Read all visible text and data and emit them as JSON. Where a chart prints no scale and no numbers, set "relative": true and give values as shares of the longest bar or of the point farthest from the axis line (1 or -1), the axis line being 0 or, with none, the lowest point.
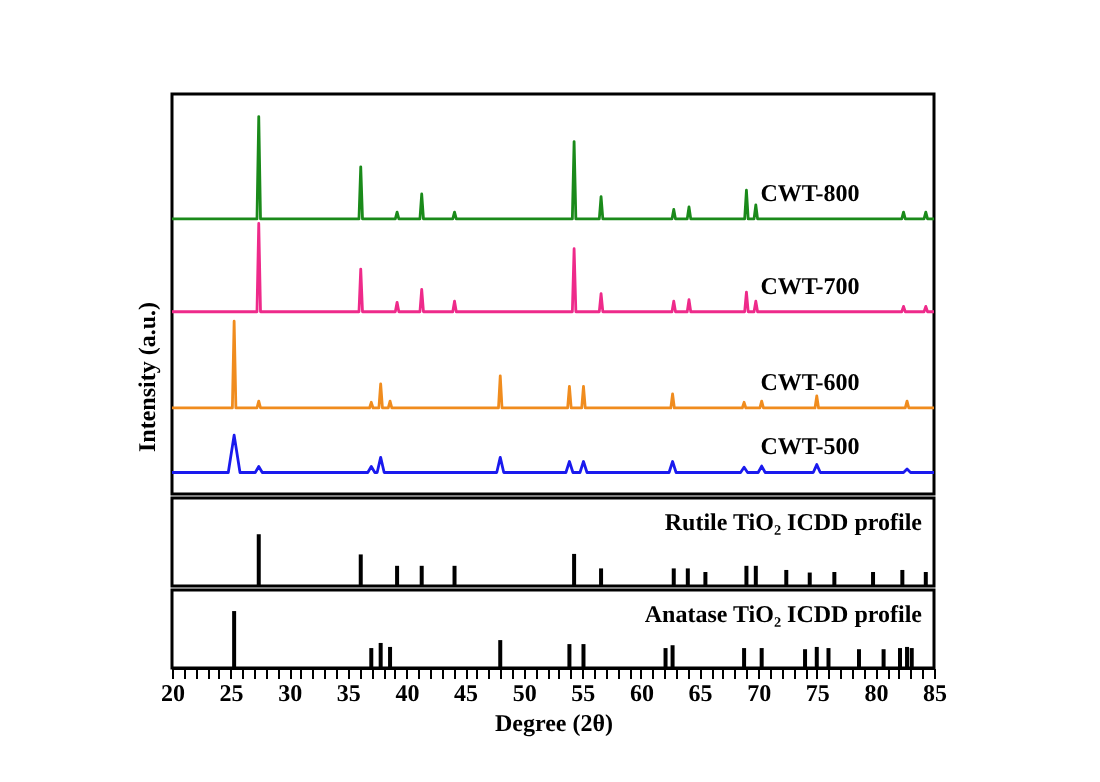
{
  "chart_data": [
    {
      "type": "line",
      "relative": true,
      "ylabel": "Intensity (a.u.)",
      "xlim": [
        20,
        85
      ],
      "xticks": [
        20,
        25,
        30,
        35,
        40,
        45,
        50,
        55,
        60,
        65,
        70,
        75,
        80,
        85
      ],
      "tick_labels": false,
      "series": [
        {
          "name": "CWT-800",
          "color": "#1a8a1a",
          "x": [
            20,
            27.25,
            27.4,
            27.55,
            35.95,
            36.1,
            36.25,
            39.05,
            39.2,
            39.35,
            41.15,
            41.3,
            41.45,
            43.95,
            44.1,
            44.25,
            54.15,
            54.3,
            54.45,
            56.45,
            56.6,
            56.75,
            62.65,
            62.8,
            62.95,
            63.95,
            64.1,
            64.25,
            68.85,
            69.0,
            69.15,
            69.65,
            69.8,
            69.95,
            82.25,
            82.4,
            82.55,
            84.15,
            84.3,
            84.45,
            85
          ],
          "values": [
            0.729,
            0.729,
            1.0,
            0.729,
            0.729,
            0.867,
            0.729,
            0.729,
            0.747,
            0.729,
            0.729,
            0.795,
            0.729,
            0.729,
            0.747,
            0.729,
            0.729,
            0.934,
            0.729,
            0.729,
            0.788,
            0.729,
            0.729,
            0.754,
            0.729,
            0.729,
            0.761,
            0.729,
            0.729,
            0.805,
            0.729,
            0.729,
            0.766,
            0.729,
            0.729,
            0.747,
            0.729,
            0.729,
            0.747,
            0.729,
            0.729
          ]
        },
        {
          "name": "CWT-700",
          "color": "#ee2a8a",
          "x": [
            20,
            27.25,
            27.4,
            27.55,
            35.95,
            36.1,
            36.25,
            39.05,
            39.2,
            39.35,
            41.15,
            41.3,
            41.45,
            43.95,
            44.1,
            44.25,
            54.15,
            54.3,
            54.45,
            56.45,
            56.6,
            56.75,
            62.65,
            62.8,
            62.95,
            63.95,
            64.1,
            64.25,
            68.85,
            69.0,
            69.15,
            69.65,
            69.8,
            69.95,
            82.25,
            82.4,
            82.55,
            84.15,
            84.3,
            84.45,
            85
          ],
          "values": [
            0.483,
            0.483,
            0.717,
            0.483,
            0.483,
            0.596,
            0.483,
            0.483,
            0.508,
            0.483,
            0.483,
            0.542,
            0.483,
            0.483,
            0.511,
            0.483,
            0.483,
            0.65,
            0.483,
            0.483,
            0.531,
            0.483,
            0.483,
            0.511,
            0.483,
            0.483,
            0.515,
            0.483,
            0.483,
            0.535,
            0.483,
            0.483,
            0.511,
            0.483,
            0.483,
            0.497,
            0.483,
            0.483,
            0.497,
            0.483,
            0.483
          ]
        },
        {
          "name": "CWT-600",
          "color": "#f08c1e",
          "x": [
            20,
            25.15,
            25.3,
            25.45,
            27.25,
            27.4,
            27.55,
            36.85,
            37.0,
            37.15,
            37.65,
            37.8,
            37.95,
            38.45,
            38.6,
            38.75,
            47.85,
            48.0,
            48.15,
            53.75,
            53.9,
            54.05,
            54.95,
            55.1,
            55.25,
            62.55,
            62.7,
            62.85,
            68.65,
            68.8,
            68.95,
            70.15,
            70.3,
            70.45,
            74.85,
            75.0,
            75.15,
            82.55,
            82.7,
            82.85,
            85
          ],
          "values": [
            0.228,
            0.228,
            0.458,
            0.228,
            0.228,
            0.246,
            0.228,
            0.228,
            0.243,
            0.228,
            0.228,
            0.292,
            0.228,
            0.228,
            0.246,
            0.228,
            0.228,
            0.313,
            0.228,
            0.228,
            0.285,
            0.228,
            0.228,
            0.285,
            0.228,
            0.228,
            0.265,
            0.228,
            0.228,
            0.243,
            0.228,
            0.228,
            0.246,
            0.228,
            0.228,
            0.26,
            0.228,
            0.228,
            0.246,
            0.228,
            0.228
          ]
        },
        {
          "name": "CWT-500",
          "color": "#1a1aee",
          "x": [
            20,
            24.8,
            25.3,
            25.8,
            27.1,
            27.4,
            27.7,
            36.7,
            37.0,
            37.3,
            37.5,
            37.8,
            38.1,
            47.7,
            48.0,
            48.3,
            53.6,
            53.9,
            54.2,
            54.8,
            55.1,
            55.4,
            62.4,
            62.7,
            63.0,
            68.5,
            68.8,
            69.1,
            70.0,
            70.3,
            70.6,
            74.7,
            75.0,
            75.3,
            82.4,
            82.7,
            83.0,
            85
          ],
          "values": [
            0.057,
            0.057,
            0.156,
            0.057,
            0.057,
            0.073,
            0.057,
            0.057,
            0.073,
            0.057,
            0.057,
            0.097,
            0.057,
            0.057,
            0.097,
            0.057,
            0.057,
            0.086,
            0.057,
            0.057,
            0.086,
            0.057,
            0.057,
            0.086,
            0.057,
            0.057,
            0.071,
            0.057,
            0.057,
            0.074,
            0.057,
            0.057,
            0.078,
            0.057,
            0.057,
            0.066,
            0.057,
            0.057
          ]
        }
      ]
    },
    {
      "type": "bar",
      "relative": true,
      "xlim": [
        20,
        85
      ],
      "tick_labels": false,
      "x": [
        27.4,
        36.1,
        39.2,
        41.3,
        44.1,
        54.3,
        56.6,
        62.8,
        64.0,
        65.5,
        69.0,
        69.8,
        72.4,
        74.4,
        76.5,
        79.8,
        82.3,
        84.3
      ],
      "series": [
        {
          "name": "Rutile TiO₂ ICDD profile",
          "color": "#000000",
          "values": [
            1.0,
            0.61,
            0.39,
            0.39,
            0.39,
            0.62,
            0.34,
            0.34,
            0.34,
            0.27,
            0.39,
            0.39,
            0.31,
            0.26,
            0.27,
            0.27,
            0.31,
            0.27
          ]
        }
      ]
    },
    {
      "type": "bar",
      "relative": true,
      "xlim": [
        20,
        85
      ],
      "tick_labels": "x",
      "xlabel": "Degree (2θ)",
      "x": [
        25.3,
        37.0,
        37.8,
        38.6,
        48.0,
        53.9,
        55.1,
        62.1,
        62.7,
        68.8,
        70.3,
        74.0,
        75.0,
        76.0,
        78.6,
        80.7,
        82.1,
        82.7,
        83.1
      ],
      "series": [
        {
          "name": "Anatase TiO₂ ICDD profile",
          "color": "#000000",
          "values": [
            1.0,
            0.35,
            0.44,
            0.37,
            0.49,
            0.42,
            0.42,
            0.35,
            0.4,
            0.35,
            0.35,
            0.33,
            0.37,
            0.35,
            0.33,
            0.33,
            0.35,
            0.37,
            0.35
          ]
        }
      ],
      "xticks": [
        20,
        {
          "value": 21,
          "label": null
        },
        {
          "value": 22,
          "label": null
        },
        {
          "value": 23,
          "label": null
        },
        {
          "value": 24,
          "label": null
        },
        25,
        {
          "value": 26,
          "label": null
        },
        {
          "value": 27,
          "label": null
        },
        {
          "value": 28,
          "label": null
        },
        {
          "value": 29,
          "label": null
        },
        30,
        {
          "value": 31,
          "label": null
        },
        {
          "value": 32,
          "label": null
        },
        {
          "value": 33,
          "label": null
        },
        {
          "value": 34,
          "label": null
        },
        35,
        {
          "value": 36,
          "label": null
        },
        {
          "value": 37,
          "label": null
        },
        {
          "value": 38,
          "label": null
        },
        {
          "value": 39,
          "label": null
        },
        40,
        {
          "value": 41,
          "label": null
        },
        {
          "value": 42,
          "label": null
        },
        {
          "value": 43,
          "label": null
        },
        {
          "value": 44,
          "label": null
        },
        45,
        {
          "value": 46,
          "label": null
        },
        {
          "value": 47,
          "label": null
        },
        {
          "value": 48,
          "label": null
        },
        {
          "value": 49,
          "label": null
        },
        50,
        {
          "value": 51,
          "label": null
        },
        {
          "value": 52,
          "label": null
        },
        {
          "value": 53,
          "label": null
        },
        {
          "value": 54,
          "label": null
        },
        55,
        {
          "value": 56,
          "label": null
        },
        {
          "value": 57,
          "label": null
        },
        {
          "value": 58,
          "label": null
        },
        {
          "value": 59,
          "label": null
        },
        60,
        {
          "value": 61,
          "label": null
        },
        {
          "value": 62,
          "label": null
        },
        {
          "value": 63,
          "label": null
        },
        {
          "value": 64,
          "label": null
        },
        65,
        {
          "value": 66,
          "label": null
        },
        {
          "value": 67,
          "label": null
        },
        {
          "value": 68,
          "label": null
        },
        {
          "value": 69,
          "label": null
        },
        70,
        {
          "value": 71,
          "label": null
        },
        {
          "value": 72,
          "label": null
        },
        {
          "value": 73,
          "label": null
        },
        {
          "value": 74,
          "label": null
        },
        75,
        {
          "value": 76,
          "label": null
        },
        {
          "value": 77,
          "label": null
        },
        {
          "value": 78,
          "label": null
        },
        {
          "value": 79,
          "label": null
        },
        80,
        {
          "value": 81,
          "label": null
        },
        {
          "value": 82,
          "label": null
        },
        {
          "value": 83,
          "label": null
        },
        {
          "value": 84,
          "label": null
        },
        85
      ]
    }
  ]
}
